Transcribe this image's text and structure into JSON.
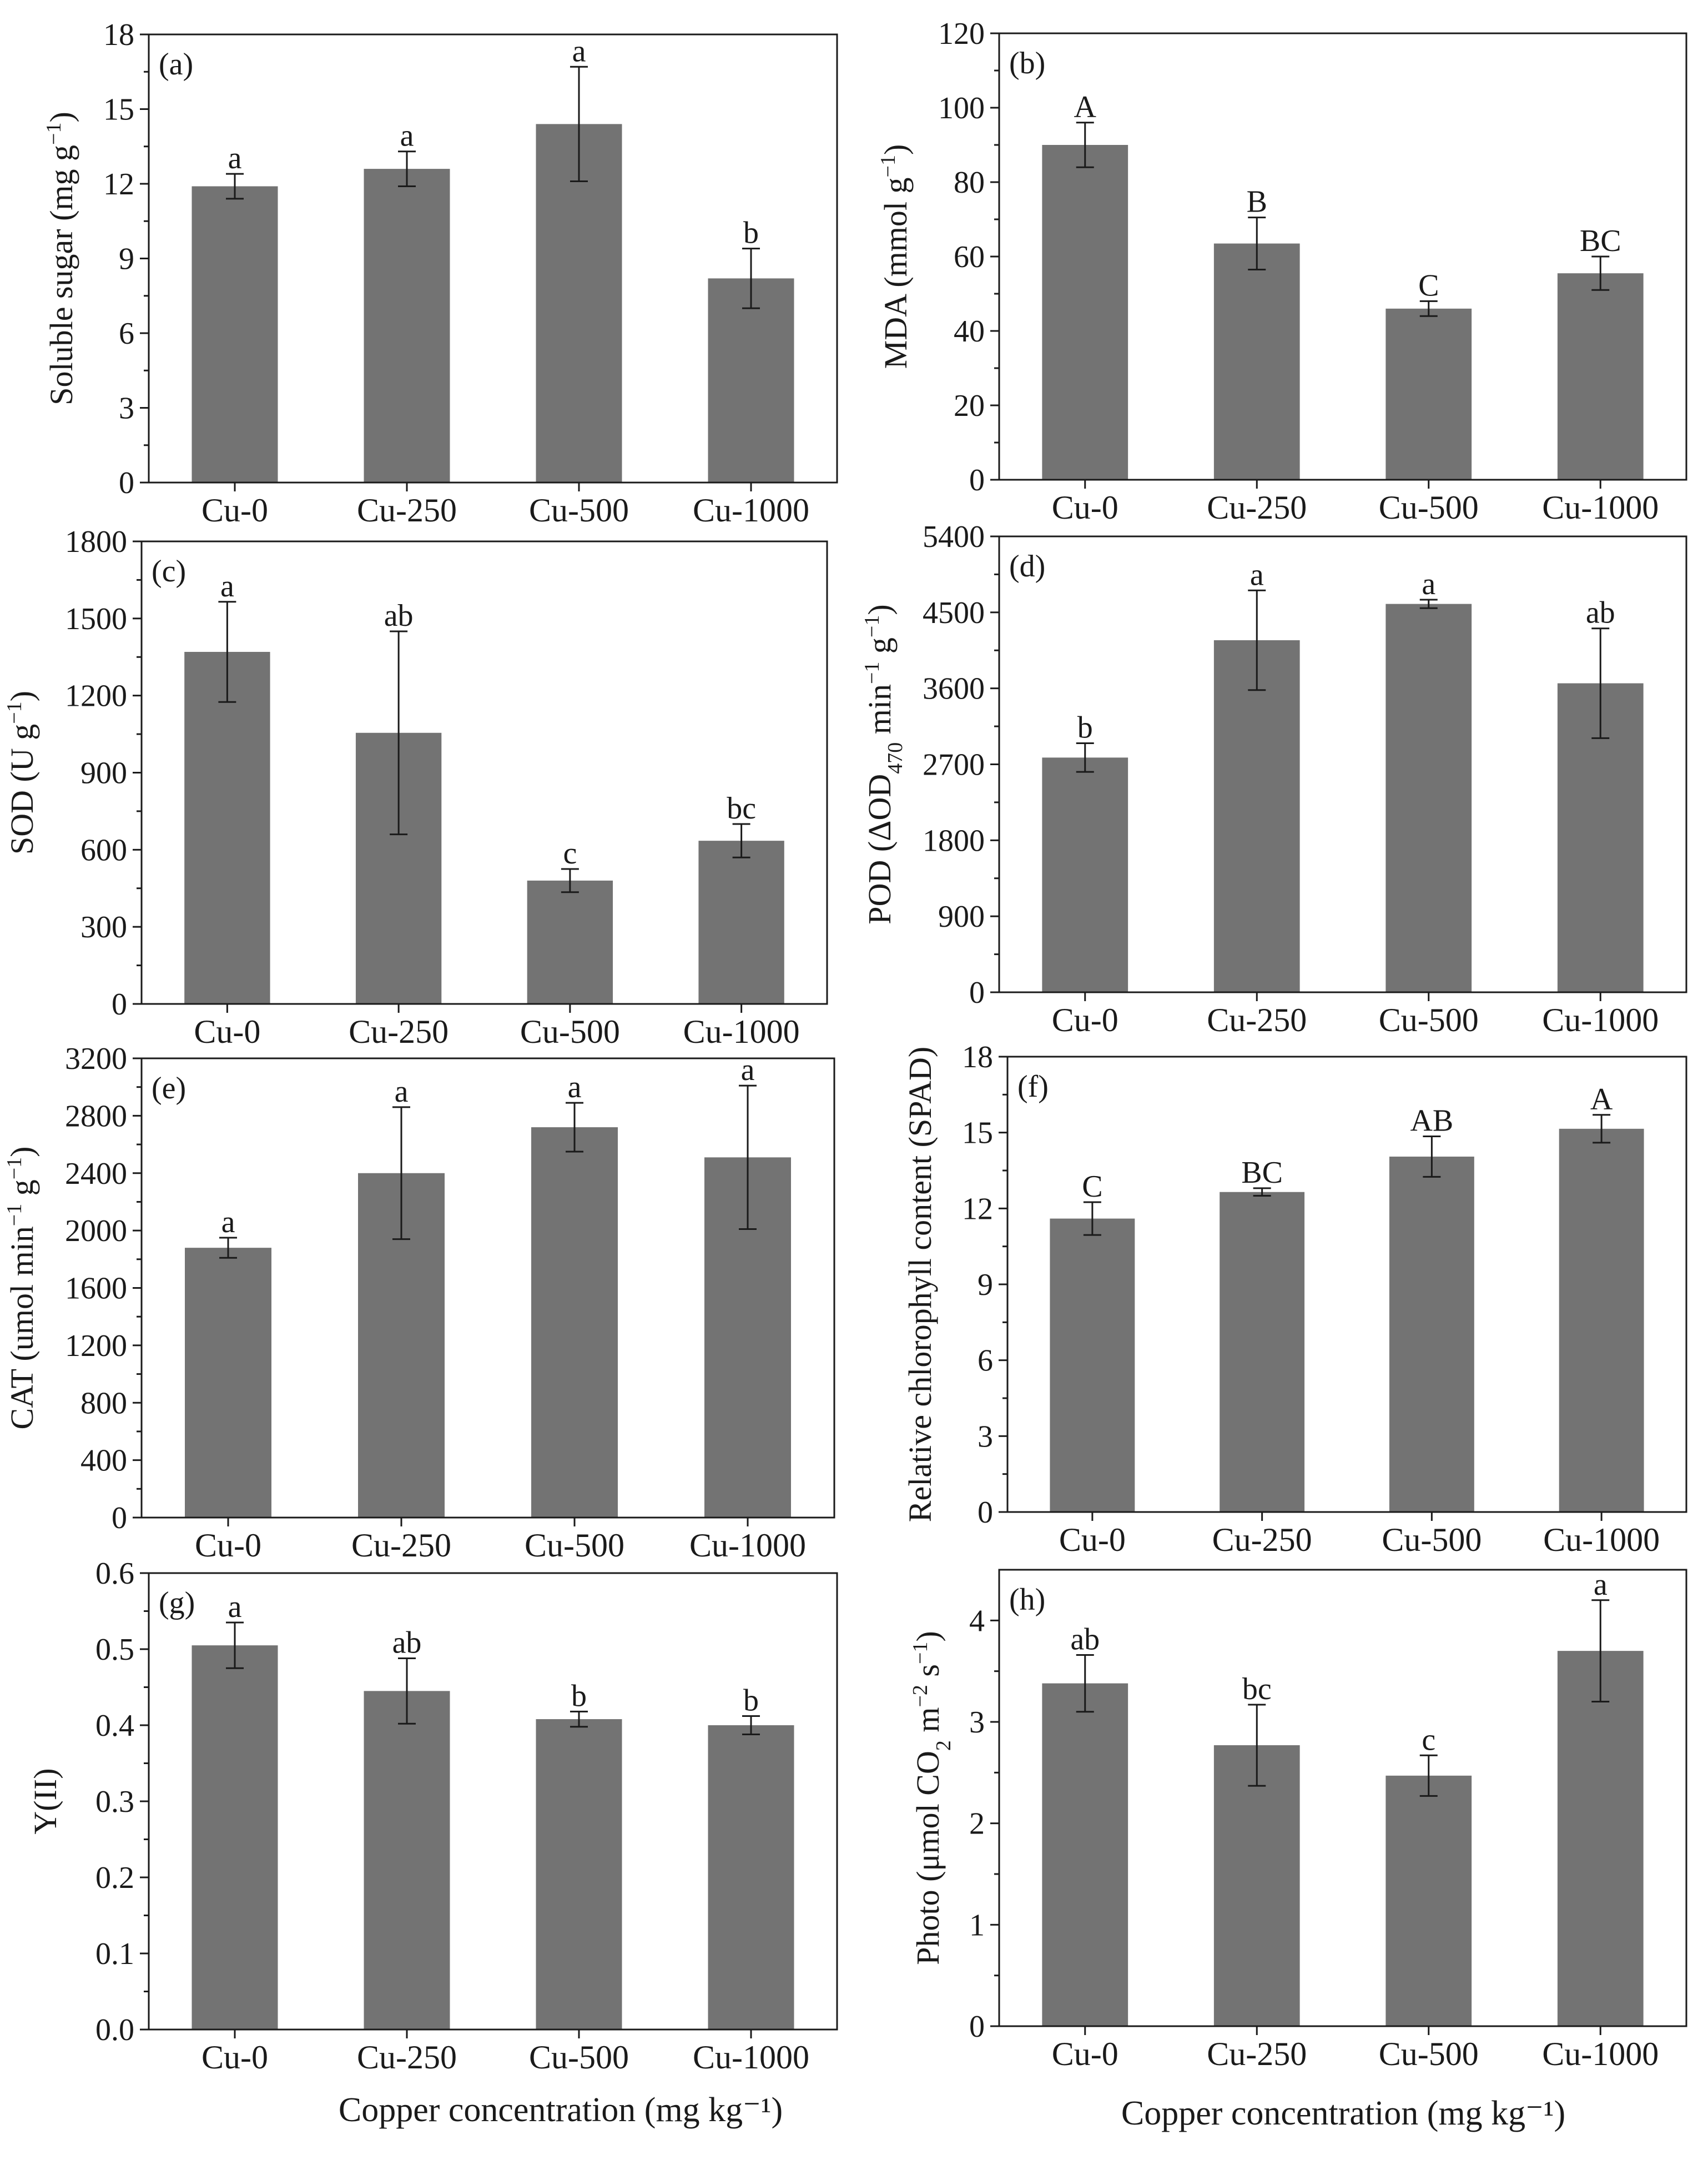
{
  "xlabel_left": "Copper concentration (mg kg⁻¹)",
  "xlabel_right": "Copper concentration (mg kg⁻¹)",
  "chart_data": [
    {
      "id": "a",
      "type": "bar",
      "panel_label": "(a)",
      "ylabel": "Soluble sugar (mg g⁻¹)",
      "categories": [
        "Cu-0",
        "Cu-250",
        "Cu-500",
        "Cu-1000"
      ],
      "values": [
        11.9,
        12.6,
        14.4,
        8.2
      ],
      "errors": [
        0.5,
        0.7,
        2.3,
        1.2
      ],
      "significance": [
        "a",
        "a",
        "a",
        "b"
      ],
      "ylim": [
        0,
        18
      ],
      "yticks": [
        "0",
        "3",
        "6",
        "9",
        "12",
        "15",
        "18"
      ]
    },
    {
      "id": "b",
      "type": "bar",
      "panel_label": "(b)",
      "ylabel": "MDA (mmol g⁻¹)",
      "categories": [
        "Cu-0",
        "Cu-250",
        "Cu-500",
        "Cu-1000"
      ],
      "values": [
        90,
        63.5,
        46,
        55.5
      ],
      "errors": [
        6,
        7,
        2,
        4.5
      ],
      "significance": [
        "A",
        "B",
        "C",
        "BC"
      ],
      "ylim": [
        0,
        120
      ],
      "yticks": [
        "0",
        "20",
        "40",
        "60",
        "80",
        "100",
        "120"
      ]
    },
    {
      "id": "c",
      "type": "bar",
      "panel_label": "(c)",
      "ylabel": "SOD (U g⁻¹)",
      "categories": [
        "Cu-0",
        "Cu-250",
        "Cu-500",
        "Cu-1000"
      ],
      "values": [
        1370,
        1055,
        480,
        635
      ],
      "errors": [
        195,
        395,
        45,
        65
      ],
      "significance": [
        "a",
        "ab",
        "c",
        "bc"
      ],
      "ylim": [
        0,
        1800
      ],
      "yticks": [
        "0",
        "300",
        "600",
        "900",
        "1200",
        "1500",
        "1800"
      ]
    },
    {
      "id": "d",
      "type": "bar",
      "panel_label": "(d)",
      "ylabel": "POD (ΔOD470 min⁻¹ g⁻¹)",
      "categories": [
        "Cu-0",
        "Cu-250",
        "Cu-500",
        "Cu-1000"
      ],
      "values": [
        2780,
        4170,
        4600,
        3660
      ],
      "errors": [
        170,
        590,
        50,
        650
      ],
      "significance": [
        "b",
        "a",
        "a",
        "ab"
      ],
      "ylim": [
        0,
        5400
      ],
      "yticks": [
        "0",
        "900",
        "1800",
        "2700",
        "3600",
        "4500",
        "5400"
      ]
    },
    {
      "id": "e",
      "type": "bar",
      "panel_label": "(e)",
      "ylabel": "CAT (umol min⁻¹ g⁻¹)",
      "categories": [
        "Cu-0",
        "Cu-250",
        "Cu-500",
        "Cu-1000"
      ],
      "values": [
        1880,
        2400,
        2720,
        2510
      ],
      "errors": [
        70,
        460,
        170,
        500
      ],
      "significance": [
        "a",
        "a",
        "a",
        "a"
      ],
      "ylim": [
        0,
        3200
      ],
      "yticks": [
        "0",
        "400",
        "800",
        "1200",
        "1600",
        "2000",
        "2400",
        "2800",
        "3200"
      ]
    },
    {
      "id": "f",
      "type": "bar",
      "panel_label": "(f)",
      "ylabel": "Relative chlorophyll content (SPAD)",
      "categories": [
        "Cu-0",
        "Cu-250",
        "Cu-500",
        "Cu-1000"
      ],
      "values": [
        11.6,
        12.65,
        14.05,
        15.15
      ],
      "errors": [
        0.65,
        0.15,
        0.8,
        0.55
      ],
      "significance": [
        "C",
        "BC",
        "AB",
        "A"
      ],
      "ylim": [
        0,
        18
      ],
      "yticks": [
        "0",
        "3",
        "6",
        "9",
        "12",
        "15",
        "18"
      ]
    },
    {
      "id": "g",
      "type": "bar",
      "panel_label": "(g)",
      "ylabel": "Y(II)",
      "categories": [
        "Cu-0",
        "Cu-250",
        "Cu-500",
        "Cu-1000"
      ],
      "values": [
        0.505,
        0.445,
        0.408,
        0.4
      ],
      "errors": [
        0.03,
        0.043,
        0.01,
        0.012
      ],
      "significance": [
        "a",
        "ab",
        "b",
        "b"
      ],
      "ylim": [
        0,
        0.6
      ],
      "yticks": [
        "0.0",
        "0.1",
        "0.2",
        "0.3",
        "0.4",
        "0.5",
        "0.6"
      ]
    },
    {
      "id": "h",
      "type": "bar",
      "panel_label": "(h)",
      "ylabel": "Photo (μmol CO₂ m⁻² s⁻¹)",
      "categories": [
        "Cu-0",
        "Cu-250",
        "Cu-500",
        "Cu-1000"
      ],
      "values": [
        3.38,
        2.77,
        2.47,
        3.7
      ],
      "errors": [
        0.28,
        0.4,
        0.2,
        0.5
      ],
      "significance": [
        "ab",
        "bc",
        "c",
        "a"
      ],
      "ylim": [
        0,
        4.5
      ],
      "yticks": [
        "0",
        "1",
        "2",
        "3",
        "4"
      ]
    }
  ]
}
